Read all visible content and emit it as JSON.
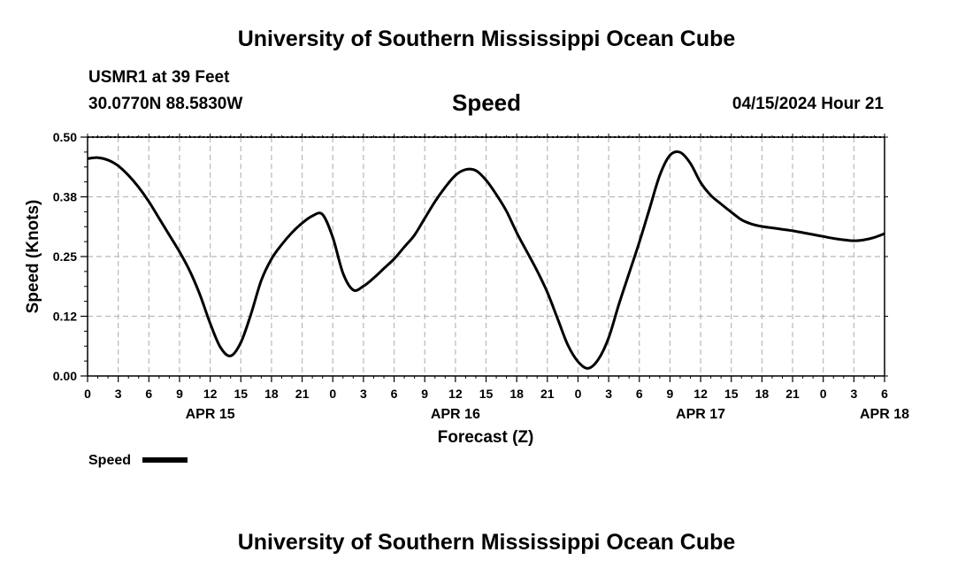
{
  "header": {
    "title": "University of Southern Mississippi Ocean Cube",
    "station": "USMR1 at 39 Feet",
    "coordinates": "30.0770N  88.5830W",
    "metric": "Speed",
    "datetime": "04/15/2024 Hour 21"
  },
  "footer": {
    "title": "University of Southern Mississippi Ocean Cube"
  },
  "chart_data": {
    "type": "line",
    "title": "Speed",
    "xlabel": "Forecast (Z)",
    "ylabel": "Speed (Knots)",
    "xlim": [
      0,
      78
    ],
    "ylim": [
      0,
      0.5
    ],
    "grid": true,
    "yticks": [
      0.0,
      0.125,
      0.25,
      0.375,
      0.5
    ],
    "ytick_labels": [
      "0.00",
      "0.12",
      "0.25",
      "0.38",
      "0.50"
    ],
    "xtick_labels": [
      "0",
      "3",
      "6",
      "9",
      "12",
      "15",
      "18",
      "21",
      "0",
      "3",
      "6",
      "9",
      "12",
      "15",
      "18",
      "21",
      "0",
      "3",
      "6",
      "9",
      "12",
      "15",
      "18",
      "21",
      "0",
      "3",
      "6"
    ],
    "day_labels": [
      {
        "label": "APR 15",
        "x": 12
      },
      {
        "label": "APR 16",
        "x": 36
      },
      {
        "label": "APR 17",
        "x": 60
      },
      {
        "label": "APR 18",
        "x": 78
      }
    ],
    "legend": {
      "entries": [
        "Speed"
      ],
      "position": "bottom-left"
    },
    "series": [
      {
        "name": "Speed",
        "x": [
          0,
          1,
          2,
          3,
          4,
          5,
          6,
          7,
          8,
          9,
          10,
          11,
          12,
          13,
          14,
          15,
          16,
          17,
          18,
          19,
          20,
          21,
          22,
          23,
          24,
          25,
          26,
          27,
          28,
          29,
          30,
          31,
          32,
          33,
          34,
          35,
          36,
          37,
          38,
          39,
          40,
          41,
          42,
          43,
          44,
          45,
          46,
          47,
          48,
          49,
          50,
          51,
          52,
          53,
          54,
          55,
          56,
          57,
          58,
          59,
          60,
          61,
          62,
          63,
          64,
          65,
          66,
          67,
          68,
          69,
          70,
          71,
          72,
          73,
          74,
          75,
          76,
          77,
          78
        ],
        "y": [
          0.455,
          0.457,
          0.452,
          0.44,
          0.42,
          0.395,
          0.365,
          0.33,
          0.295,
          0.26,
          0.22,
          0.17,
          0.11,
          0.06,
          0.042,
          0.07,
          0.13,
          0.2,
          0.245,
          0.275,
          0.3,
          0.32,
          0.335,
          0.338,
          0.29,
          0.215,
          0.18,
          0.188,
          0.205,
          0.225,
          0.245,
          0.27,
          0.295,
          0.33,
          0.365,
          0.395,
          0.42,
          0.432,
          0.43,
          0.41,
          0.38,
          0.345,
          0.3,
          0.26,
          0.22,
          0.175,
          0.12,
          0.065,
          0.03,
          0.016,
          0.035,
          0.08,
          0.15,
          0.215,
          0.28,
          0.35,
          0.42,
          0.462,
          0.468,
          0.445,
          0.405,
          0.378,
          0.36,
          0.343,
          0.327,
          0.318,
          0.313,
          0.31,
          0.307,
          0.304,
          0.3,
          0.296,
          0.292,
          0.288,
          0.285,
          0.283,
          0.285,
          0.29,
          0.298
        ]
      }
    ]
  }
}
